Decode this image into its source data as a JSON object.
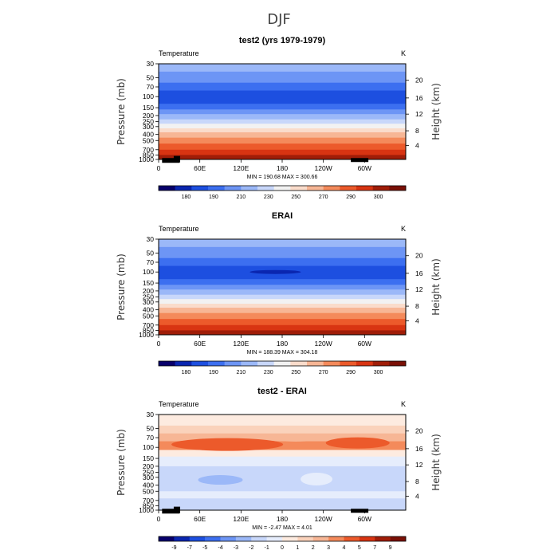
{
  "figure_title": "DJF",
  "chart_data": [
    {
      "type": "heatmap",
      "title": "test2 (yrs 1979-1979)",
      "subtitle_left": "Temperature",
      "subtitle_right": "K",
      "xlabel": "",
      "ylabel": "Pressure (mb)",
      "ylabel_right": "Height (km)",
      "x_ticks": [
        "0",
        "60E",
        "120E",
        "180",
        "120W",
        "60W"
      ],
      "x_values": [
        0,
        60,
        120,
        180,
        240,
        300
      ],
      "xlim": [
        0,
        360
      ],
      "y_ticks": [
        "30",
        "50",
        "70",
        "100",
        "150",
        "200",
        "250",
        "300",
        "400",
        "500",
        "700",
        "850",
        "1000"
      ],
      "y_values": [
        30,
        50,
        70,
        100,
        150,
        200,
        250,
        300,
        400,
        500,
        700,
        850,
        1000
      ],
      "ylim": [
        1000,
        30
      ],
      "y_scale": "log",
      "height_ticks": [
        "4",
        "8",
        "12",
        "16",
        "20"
      ],
      "height_values": [
        4,
        8,
        12,
        16,
        20
      ],
      "stats": "MIN = 190.68   MAX = 300.66",
      "min": 190.68,
      "max": 300.66,
      "colorbar_labels": [
        "180",
        "190",
        "210",
        "230",
        "250",
        "270",
        "290",
        "300"
      ],
      "levels_profile": [
        {
          "p": 30,
          "level": 4
        },
        {
          "p": 50,
          "level": 3
        },
        {
          "p": 70,
          "level": 2
        },
        {
          "p": 100,
          "level": 1
        },
        {
          "p": 150,
          "level": 2
        },
        {
          "p": 200,
          "level": 3
        },
        {
          "p": 250,
          "level": 4
        },
        {
          "p": 300,
          "level": 6
        },
        {
          "p": 400,
          "level": 8
        },
        {
          "p": 500,
          "level": 9
        },
        {
          "p": 700,
          "level": 11
        },
        {
          "p": 850,
          "level": 12
        },
        {
          "p": 1000,
          "level": 13
        }
      ],
      "colors": [
        "#08006b",
        "#0a26b0",
        "#1d4fe0",
        "#3c6ff0",
        "#6d95f5",
        "#9bb8f8",
        "#c8d7fa",
        "#f2f2f2",
        "#fadccb",
        "#f7b695",
        "#f48a5b",
        "#ec5a2b",
        "#d83412",
        "#a01d08",
        "#7a1006"
      ]
    },
    {
      "type": "heatmap",
      "title": "ERAI",
      "subtitle_left": "Temperature",
      "subtitle_right": "K",
      "xlabel": "",
      "ylabel": "Pressure (mb)",
      "ylabel_right": "Height (km)",
      "x_ticks": [
        "0",
        "60E",
        "120E",
        "180",
        "120W",
        "60W"
      ],
      "x_values": [
        0,
        60,
        120,
        180,
        240,
        300
      ],
      "xlim": [
        0,
        360
      ],
      "y_ticks": [
        "30",
        "50",
        "70",
        "100",
        "150",
        "200",
        "250",
        "300",
        "400",
        "500",
        "700",
        "850",
        "1000"
      ],
      "y_values": [
        30,
        50,
        70,
        100,
        150,
        200,
        250,
        300,
        400,
        500,
        700,
        850,
        1000
      ],
      "ylim": [
        1000,
        30
      ],
      "y_scale": "log",
      "height_ticks": [
        "4",
        "8",
        "12",
        "16",
        "20"
      ],
      "height_values": [
        4,
        8,
        12,
        16,
        20
      ],
      "stats": "MIN = 188.39   MAX = 304.18",
      "min": 188.39,
      "max": 304.18,
      "colorbar_labels": [
        "180",
        "190",
        "210",
        "230",
        "250",
        "270",
        "290",
        "300"
      ],
      "colors": [
        "#08006b",
        "#0a26b0",
        "#1d4fe0",
        "#3c6ff0",
        "#6d95f5",
        "#9bb8f8",
        "#c8d7fa",
        "#f2f2f2",
        "#fadccb",
        "#f7b695",
        "#f48a5b",
        "#ec5a2b",
        "#d83412",
        "#a01d08",
        "#7a1006"
      ]
    },
    {
      "type": "heatmap",
      "title": "test2 - ERAI",
      "subtitle_left": "Temperature",
      "subtitle_right": "K",
      "xlabel": "",
      "ylabel": "Pressure (mb)",
      "ylabel_right": "Height (km)",
      "x_ticks": [
        "0",
        "60E",
        "120E",
        "180",
        "120W",
        "60W"
      ],
      "x_values": [
        0,
        60,
        120,
        180,
        240,
        300
      ],
      "xlim": [
        0,
        360
      ],
      "y_ticks": [
        "30",
        "50",
        "70",
        "100",
        "150",
        "200",
        "250",
        "300",
        "400",
        "500",
        "700",
        "850",
        "1000"
      ],
      "y_values": [
        30,
        50,
        70,
        100,
        150,
        200,
        250,
        300,
        400,
        500,
        700,
        850,
        1000
      ],
      "ylim": [
        1000,
        30
      ],
      "y_scale": "log",
      "height_ticks": [
        "4",
        "8",
        "12",
        "16",
        "20"
      ],
      "height_values": [
        4,
        8,
        12,
        16,
        20
      ],
      "stats": "MIN =   -2.47   MAX =    4.01",
      "min": -2.47,
      "max": 4.01,
      "colorbar_labels": [
        "-9",
        "-7",
        "-5",
        "-4",
        "-3",
        "-2",
        "-1",
        "0",
        "1",
        "2",
        "3",
        "4",
        "5",
        "7",
        "9"
      ],
      "colors": [
        "#08006b",
        "#0a26b0",
        "#1d4fe0",
        "#3c6ff0",
        "#6d95f5",
        "#9bb8f8",
        "#c8d7fa",
        "#e6edfc",
        "#fdebe0",
        "#fad2bb",
        "#f7b695",
        "#f48a5b",
        "#ec5a2b",
        "#d83412",
        "#a01d08",
        "#7a1006"
      ]
    }
  ]
}
